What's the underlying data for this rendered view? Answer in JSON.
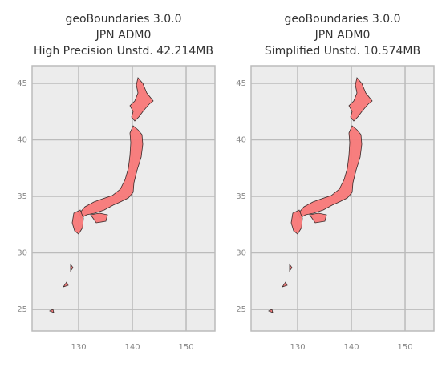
{
  "chart_data": [
    {
      "type": "map",
      "title": [
        "geoBoundaries 3.0.0",
        "JPN ADM0",
        "High Precision Unstd. 42.214MB"
      ],
      "xlim": [
        121.34,
        155.37
      ],
      "ylim": [
        23.09,
        46.56
      ],
      "xticks": [
        130,
        140,
        150
      ],
      "yticks": [
        25,
        30,
        35,
        40,
        45
      ],
      "grid": true,
      "color": "#f87878"
    },
    {
      "type": "map",
      "title": [
        "geoBoundaries 3.0.0",
        "JPN ADM0",
        "Simplified Unstd. 10.574MB"
      ],
      "xlim": [
        121.34,
        155.37
      ],
      "ylim": [
        23.09,
        46.56
      ],
      "xticks": [
        130,
        140,
        150
      ],
      "yticks": [
        25,
        30,
        35,
        40,
        45
      ],
      "grid": true,
      "color": "#f87878"
    }
  ]
}
